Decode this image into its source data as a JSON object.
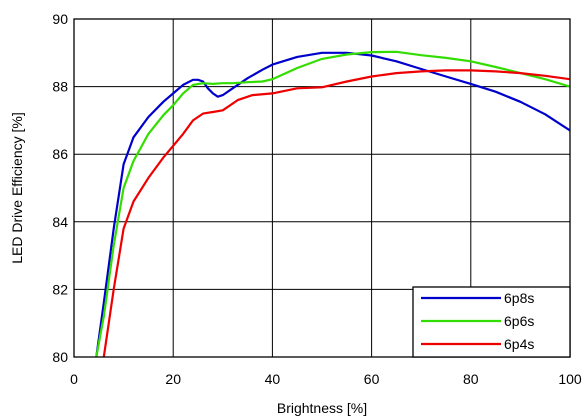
{
  "chart_data": {
    "type": "line",
    "title": "",
    "xlabel": "Brightness [%]",
    "ylabel": "LED Drive Efficiency [%]",
    "xlim": [
      0,
      100
    ],
    "ylim": [
      80,
      90
    ],
    "xticks": [
      0,
      20,
      40,
      60,
      80,
      100
    ],
    "yticks": [
      80,
      82,
      84,
      86,
      88,
      90
    ],
    "grid": true,
    "legend": "bottom-right",
    "series": [
      {
        "name": "6p8s",
        "color": "#0000cc",
        "x": [
          4.5,
          6,
          8,
          10,
          12,
          15,
          18,
          20,
          22,
          24,
          25,
          26,
          27,
          28,
          29,
          30,
          32,
          35,
          38,
          40,
          45,
          50,
          55,
          60,
          65,
          70,
          75,
          80,
          85,
          90,
          95,
          100
        ],
        "y": [
          80.0,
          81.6,
          83.8,
          85.7,
          86.5,
          87.1,
          87.55,
          87.8,
          88.05,
          88.2,
          88.2,
          88.15,
          87.95,
          87.8,
          87.7,
          87.75,
          87.95,
          88.25,
          88.5,
          88.65,
          88.88,
          89.0,
          89.0,
          88.92,
          88.75,
          88.52,
          88.3,
          88.08,
          87.85,
          87.55,
          87.18,
          86.7
        ]
      },
      {
        "name": "6p6s",
        "color": "#33dd00",
        "x": [
          4.5,
          6,
          8,
          10,
          12,
          15,
          18,
          20,
          22,
          24,
          26,
          28,
          30,
          32,
          35,
          38,
          40,
          45,
          50,
          55,
          60,
          65,
          70,
          75,
          80,
          85,
          90,
          95,
          100
        ],
        "y": [
          80.0,
          81.2,
          83.3,
          85.0,
          85.8,
          86.6,
          87.15,
          87.45,
          87.8,
          88.05,
          88.1,
          88.08,
          88.1,
          88.1,
          88.13,
          88.15,
          88.22,
          88.55,
          88.82,
          88.95,
          89.02,
          89.03,
          88.93,
          88.85,
          88.75,
          88.58,
          88.4,
          88.22,
          88.0
        ]
      },
      {
        "name": "6p4s",
        "color": "#ee0000",
        "x": [
          6,
          8,
          10,
          12,
          15,
          18,
          20,
          22,
          24,
          26,
          28,
          30,
          33,
          36,
          40,
          45,
          50,
          55,
          60,
          65,
          70,
          75,
          80,
          85,
          90,
          95,
          100
        ],
        "y": [
          80.0,
          82.0,
          83.8,
          84.6,
          85.3,
          85.9,
          86.25,
          86.6,
          87.0,
          87.2,
          87.25,
          87.3,
          87.6,
          87.75,
          87.8,
          87.95,
          87.98,
          88.15,
          88.3,
          88.4,
          88.45,
          88.48,
          88.48,
          88.45,
          88.4,
          88.32,
          88.22
        ]
      }
    ]
  }
}
